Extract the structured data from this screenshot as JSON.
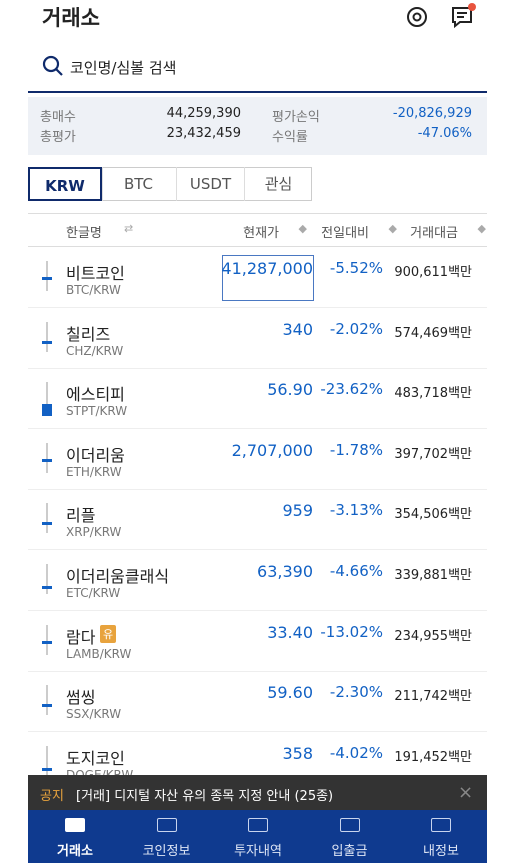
{
  "header": {
    "title": "거래소"
  },
  "search": {
    "placeholder": "코인명/심볼 검색"
  },
  "summary": {
    "rows": [
      [
        "총매수",
        "44,259,390",
        "평가손익",
        "-20,826,929"
      ],
      [
        "총평가",
        "23,432,459",
        "수익률",
        "-47.06%"
      ]
    ]
  },
  "tabs": [
    "KRW",
    "BTC",
    "USDT",
    "관심"
  ],
  "columns": [
    "한글명",
    "현재가",
    "전일대비",
    "거래대금"
  ],
  "rows": [
    {
      "name": "비트코인",
      "symbol": "BTC/KRW",
      "price": "41,287,000",
      "change": "-5.52%",
      "volume": "900,611백만"
    },
    {
      "name": "칠리즈",
      "symbol": "CHZ/KRW",
      "price": "340",
      "change": "-2.02%",
      "volume": "574,469백만"
    },
    {
      "name": "에스티피",
      "symbol": "STPT/KRW",
      "price": "56.90",
      "change": "-23.62%",
      "volume": "483,718백만"
    },
    {
      "name": "이더리움",
      "symbol": "ETH/KRW",
      "price": "2,707,000",
      "change": "-1.78%",
      "volume": "397,702백만"
    },
    {
      "name": "리플",
      "symbol": "XRP/KRW",
      "price": "959",
      "change": "-3.13%",
      "volume": "354,506백만"
    },
    {
      "name": "이더리움클래식",
      "symbol": "ETC/KRW",
      "price": "63,390",
      "change": "-4.66%",
      "volume": "339,881백만"
    },
    {
      "name": "람다",
      "badge": "유",
      "symbol": "LAMB/KRW",
      "price": "33.40",
      "change": "-13.02%",
      "volume": "234,955백만"
    },
    {
      "name": "썸씽",
      "symbol": "SSX/KRW",
      "price": "59.60",
      "change": "-2.30%",
      "volume": "211,742백만"
    },
    {
      "name": "도지코인",
      "symbol": "DOGE/KRW",
      "price": "358",
      "change": "-4.02%",
      "volume": "191,452백만"
    }
  ],
  "notice": {
    "tag": "공지",
    "text": "[거래] 디지털 자산 유의 종목 지정 안내 (25종)"
  },
  "nav": [
    "거래소",
    "코인정보",
    "투자내역",
    "입출금",
    "내정보"
  ]
}
